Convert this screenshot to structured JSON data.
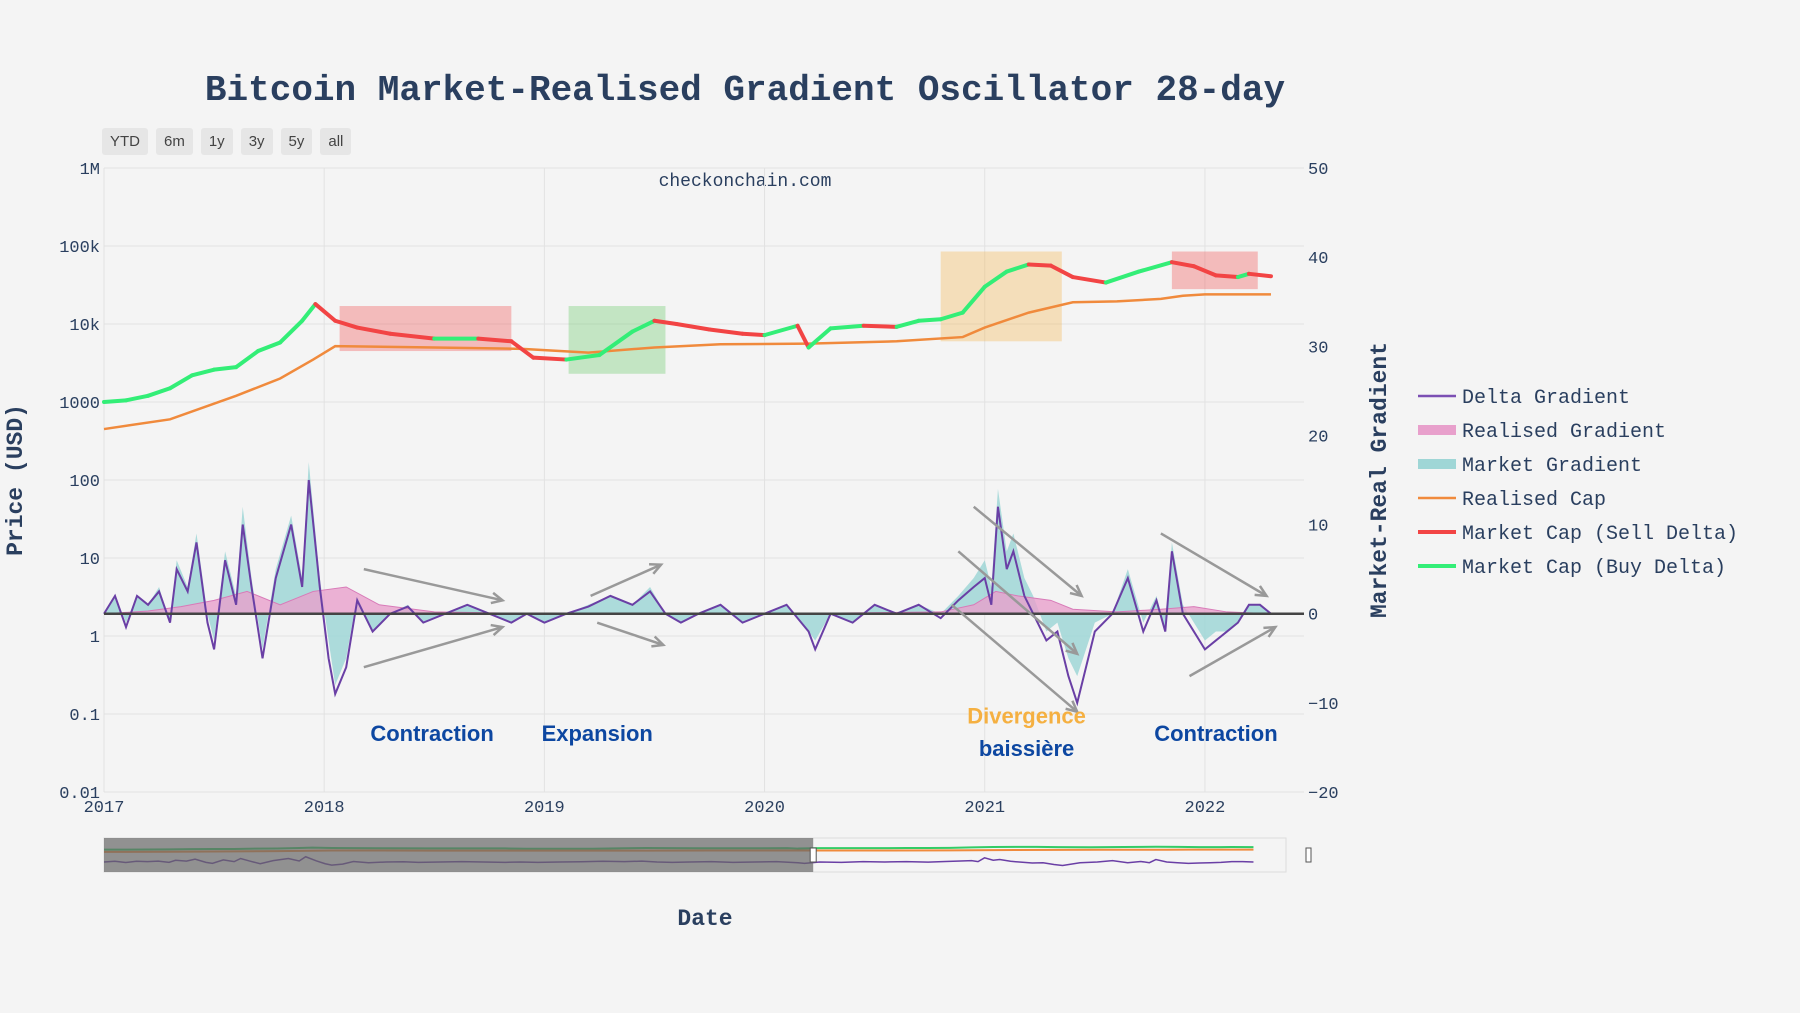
{
  "title": "Bitcoin Market-Realised Gradient Oscillator 28-day",
  "watermark": "checkonchain.com",
  "range_selector": [
    "YTD",
    "6m",
    "1y",
    "3y",
    "5y",
    "all"
  ],
  "chart_data": {
    "type": "line",
    "x_label": "Date",
    "y_left_label": "Price (USD)",
    "y_right_label": "Market-Real Gradient",
    "x_ticks": [
      "2017",
      "2018",
      "2019",
      "2020",
      "2021",
      "2022"
    ],
    "x_range": [
      2017.0,
      2022.45
    ],
    "y_left_ticks": [
      "0.01",
      "0.1",
      "1",
      "10",
      "100",
      "1000",
      "10k",
      "100k",
      "1M"
    ],
    "y_left_range_log10": [
      -2,
      6
    ],
    "y_right_ticks": [
      "−20",
      "−10",
      "0",
      "10",
      "20",
      "30",
      "40",
      "50"
    ],
    "y_right_range": [
      -20,
      50
    ],
    "legend": [
      {
        "name": "Delta Gradient",
        "color": "#7b4fb3",
        "kind": "line"
      },
      {
        "name": "Realised Gradient",
        "color": "#e8a0cc",
        "kind": "area"
      },
      {
        "name": "Market Gradient",
        "color": "#9fd6d6",
        "kind": "area"
      },
      {
        "name": "Realised Cap",
        "color": "#f08a3c",
        "kind": "line"
      },
      {
        "name": "Market Cap (Sell Delta)",
        "color": "#f24444",
        "kind": "line"
      },
      {
        "name": "Market Cap (Buy Delta)",
        "color": "#33ee77",
        "kind": "line"
      }
    ],
    "series": {
      "market_cap": {
        "x": [
          2017.0,
          2017.1,
          2017.2,
          2017.3,
          2017.4,
          2017.5,
          2017.6,
          2017.7,
          2017.8,
          2017.9,
          2017.96,
          2018.05,
          2018.15,
          2018.3,
          2018.5,
          2018.7,
          2018.85,
          2018.95,
          2019.1,
          2019.25,
          2019.4,
          2019.5,
          2019.6,
          2019.75,
          2019.9,
          2020.0,
          2020.15,
          2020.2,
          2020.3,
          2020.45,
          2020.6,
          2020.7,
          2020.8,
          2020.9,
          2021.0,
          2021.1,
          2021.2,
          2021.3,
          2021.4,
          2021.55,
          2021.7,
          2021.85,
          2021.95,
          2022.05,
          2022.15,
          2022.2,
          2022.3
        ],
        "y": [
          1000,
          1050,
          1200,
          1500,
          2200,
          2600,
          2800,
          4500,
          5800,
          11000,
          18000,
          11000,
          9000,
          7500,
          6500,
          6500,
          6000,
          3700,
          3500,
          4000,
          8000,
          11000,
          10000,
          8500,
          7500,
          7200,
          9500,
          5000,
          8800,
          9500,
          9200,
          11000,
          11500,
          14000,
          30000,
          47000,
          58000,
          56000,
          40000,
          34000,
          47000,
          62000,
          55000,
          42000,
          40000,
          44000,
          41000
        ]
      },
      "realised_cap": {
        "x": [
          2017.0,
          2017.3,
          2017.6,
          2017.8,
          2017.95,
          2018.05,
          2018.5,
          2018.9,
          2019.2,
          2019.5,
          2019.8,
          2020.2,
          2020.6,
          2020.9,
          2021.0,
          2021.2,
          2021.4,
          2021.6,
          2021.8,
          2021.9,
          2022.0,
          2022.2,
          2022.3
        ],
        "y": [
          450,
          600,
          1200,
          2000,
          3500,
          5200,
          5000,
          4800,
          4300,
          5000,
          5500,
          5600,
          6000,
          6800,
          9000,
          14000,
          19000,
          19500,
          21000,
          23000,
          24000,
          24000,
          24000
        ]
      },
      "realised_gradient": {
        "x": [
          2017.0,
          2017.2,
          2017.35,
          2017.5,
          2017.65,
          2017.8,
          2017.95,
          2018.1,
          2018.25,
          2018.5,
          2019.0,
          2020.0,
          2020.8,
          2020.95,
          2021.05,
          2021.15,
          2021.3,
          2021.4,
          2021.6,
          2021.8,
          2021.95,
          2022.1,
          2022.3
        ],
        "y": [
          0,
          0.3,
          0.8,
          1.5,
          2.5,
          1.0,
          2.5,
          3.0,
          1.0,
          0.2,
          0,
          0,
          0.2,
          1.0,
          2.5,
          2.0,
          1.5,
          0.5,
          0.2,
          0.5,
          0.8,
          0.2,
          0
        ]
      },
      "market_gradient": {
        "x": [
          2017.0,
          2017.05,
          2017.1,
          2017.15,
          2017.2,
          2017.25,
          2017.3,
          2017.33,
          2017.38,
          2017.42,
          2017.47,
          2017.5,
          2017.55,
          2017.6,
          2017.63,
          2017.67,
          2017.72,
          2017.78,
          2017.85,
          2017.9,
          2017.93,
          2017.98,
          2018.02,
          2018.05,
          2018.1,
          2018.15,
          2018.22,
          2018.3,
          2018.38,
          2018.45,
          2018.55,
          2018.65,
          2018.75,
          2018.85,
          2018.92,
          2019.0,
          2019.1,
          2019.2,
          2019.3,
          2019.4,
          2019.48,
          2019.55,
          2019.62,
          2019.7,
          2019.8,
          2019.9,
          2020.0,
          2020.1,
          2020.2,
          2020.23,
          2020.3,
          2020.4,
          2020.5,
          2020.6,
          2020.7,
          2020.8,
          2020.88,
          2020.95,
          2021.0,
          2021.03,
          2021.06,
          2021.1,
          2021.13,
          2021.18,
          2021.22,
          2021.28,
          2021.33,
          2021.38,
          2021.42,
          2021.5,
          2021.58,
          2021.65,
          2021.72,
          2021.78,
          2021.82,
          2021.85,
          2021.9,
          2021.95,
          2022.0,
          2022.05,
          2022.1,
          2022.15,
          2022.2,
          2022.25,
          2022.3
        ],
        "y": [
          0,
          2,
          -1,
          2,
          1,
          3,
          -1,
          6,
          3,
          9,
          0,
          -3,
          7,
          2,
          12,
          4,
          -4,
          5,
          11,
          4,
          17,
          4,
          -3,
          -8,
          -5,
          2,
          -2,
          0,
          1,
          -1,
          0,
          1,
          0,
          -1,
          0,
          -1,
          0,
          1,
          2,
          1,
          3,
          0,
          -1,
          0,
          1,
          -1,
          0,
          1,
          -2,
          -3,
          0,
          -1,
          1,
          0,
          1,
          0,
          2,
          4,
          6,
          3,
          14,
          7,
          9,
          4,
          2,
          -2,
          -1,
          -5,
          -7,
          -1,
          0,
          5,
          -1,
          2,
          -2,
          8,
          1,
          -1,
          -3,
          -2,
          -2,
          -1,
          1,
          1,
          0
        ]
      },
      "delta_gradient": {
        "x": [
          2017.0,
          2017.05,
          2017.1,
          2017.15,
          2017.2,
          2017.25,
          2017.3,
          2017.33,
          2017.38,
          2017.42,
          2017.47,
          2017.5,
          2017.55,
          2017.6,
          2017.63,
          2017.67,
          2017.72,
          2017.78,
          2017.85,
          2017.9,
          2017.93,
          2017.98,
          2018.02,
          2018.05,
          2018.1,
          2018.15,
          2018.22,
          2018.3,
          2018.38,
          2018.45,
          2018.55,
          2018.65,
          2018.75,
          2018.85,
          2018.92,
          2019.0,
          2019.1,
          2019.2,
          2019.3,
          2019.4,
          2019.48,
          2019.55,
          2019.62,
          2019.7,
          2019.8,
          2019.9,
          2020.0,
          2020.1,
          2020.2,
          2020.23,
          2020.3,
          2020.4,
          2020.5,
          2020.6,
          2020.7,
          2020.8,
          2020.88,
          2020.95,
          2021.0,
          2021.03,
          2021.06,
          2021.1,
          2021.13,
          2021.18,
          2021.22,
          2021.28,
          2021.33,
          2021.38,
          2021.42,
          2021.5,
          2021.58,
          2021.65,
          2021.72,
          2021.78,
          2021.82,
          2021.85,
          2021.9,
          2021.95,
          2022.0,
          2022.05,
          2022.1,
          2022.15,
          2022.2,
          2022.25,
          2022.3
        ],
        "y": [
          0,
          2,
          -1.5,
          2,
          1,
          2.5,
          -1,
          5,
          2.5,
          8,
          -1,
          -4,
          6,
          1,
          10,
          3,
          -5,
          4,
          10,
          3,
          15,
          3,
          -5,
          -9,
          -6,
          1.5,
          -2,
          0,
          0.8,
          -1,
          0,
          1,
          0,
          -1,
          0,
          -1,
          0,
          0.8,
          2,
          1,
          2.5,
          0,
          -1,
          0,
          1,
          -1,
          0,
          1,
          -2,
          -4,
          0,
          -1,
          1,
          0,
          1,
          -0.5,
          1.5,
          3,
          4,
          1,
          12,
          5,
          7,
          2,
          0,
          -3,
          -2,
          -7,
          -10,
          -2,
          0,
          4,
          -2,
          1.5,
          -2,
          7,
          0,
          -2,
          -4,
          -3,
          -2,
          -1,
          1,
          1,
          0
        ]
      }
    },
    "shaded_regions": [
      {
        "x": [
          2018.07,
          2018.85
        ],
        "price": [
          4500,
          17000
        ],
        "color": "#f24444"
      },
      {
        "x": [
          2019.11,
          2019.55
        ],
        "price": [
          2300,
          17000
        ],
        "color": "#5cc85c"
      },
      {
        "x": [
          2020.8,
          2021.35
        ],
        "price": [
          6000,
          85000
        ],
        "color": "#f5b041"
      },
      {
        "x": [
          2021.85,
          2022.24
        ],
        "price": [
          28000,
          85000
        ],
        "color": "#f24444"
      }
    ],
    "annotations": [
      {
        "text": "Contraction",
        "color": "#0d47a1",
        "x": 2018.49,
        "price": 0.045
      },
      {
        "text": "Expansion",
        "color": "#0d47a1",
        "x": 2019.24,
        "price": 0.045
      },
      {
        "text": "Divergence",
        "color": "#f5b041",
        "x": 2021.19,
        "price": 0.075
      },
      {
        "text": "baissière",
        "color": "#0d47a1",
        "x": 2021.19,
        "price": 0.029
      },
      {
        "text": "Contraction",
        "color": "#0d47a1",
        "x": 2022.05,
        "price": 0.045
      }
    ],
    "arrows": [
      {
        "x1": 2018.18,
        "g1": 5,
        "x2": 2018.81,
        "g2": 1.5
      },
      {
        "x1": 2018.18,
        "g1": -6,
        "x2": 2018.81,
        "g2": -1.5
      },
      {
        "x1": 2019.21,
        "g1": 2,
        "x2": 2019.53,
        "g2": 5.5
      },
      {
        "x1": 2019.24,
        "g1": -1,
        "x2": 2019.54,
        "g2": -3.5
      },
      {
        "x1": 2020.95,
        "g1": 12,
        "x2": 2021.44,
        "g2": 2
      },
      {
        "x1": 2020.88,
        "g1": 7,
        "x2": 2021.42,
        "g2": -4.5
      },
      {
        "x1": 2020.85,
        "g1": 1,
        "x2": 2021.42,
        "g2": -11
      },
      {
        "x1": 2021.8,
        "g1": 9,
        "x2": 2022.28,
        "g2": 2
      },
      {
        "x1": 2021.93,
        "g1": -7,
        "x2": 2022.32,
        "g2": -1.5
      }
    ],
    "range_slider": {
      "visible_fraction": 0.6
    }
  }
}
